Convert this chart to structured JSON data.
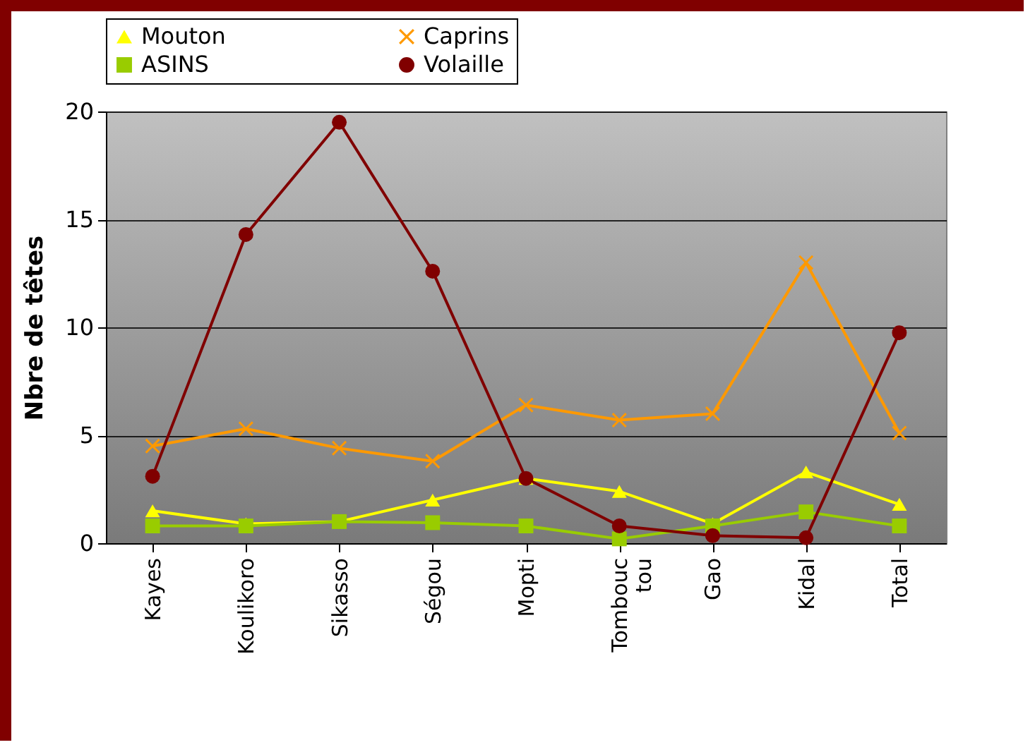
{
  "chart_data": {
    "type": "line",
    "ylabel": "Nbre de têtes",
    "categories": [
      "Kayes",
      "Koulikoro",
      "Sikasso",
      "Ségou",
      "Mopti",
      "Tombouc tou",
      "Gao",
      "Kidal",
      "Total"
    ],
    "series": [
      {
        "name": "Mouton",
        "color": "#ffff00",
        "marker": "triangle",
        "values": [
          1.5,
          0.9,
          1.0,
          2.0,
          3.0,
          2.4,
          0.9,
          3.3,
          1.8
        ]
      },
      {
        "name": "Caprins",
        "color": "#ff9900",
        "marker": "cross",
        "values": [
          4.5,
          5.3,
          4.4,
          3.8,
          6.4,
          5.7,
          6.0,
          13.0,
          5.1
        ]
      },
      {
        "name": "ASINS",
        "color": "#99cc00",
        "marker": "square",
        "values": [
          0.8,
          0.8,
          1.0,
          0.95,
          0.8,
          0.2,
          0.8,
          1.45,
          0.8
        ]
      },
      {
        "name": "Volaille",
        "color": "#800000",
        "marker": "circle",
        "values": [
          3.1,
          14.3,
          19.5,
          12.6,
          3.0,
          0.8,
          0.35,
          0.25,
          9.75
        ]
      }
    ],
    "ylim": [
      0,
      20
    ],
    "yticks": [
      0,
      5,
      10,
      15,
      20
    ],
    "grid": "y",
    "legend": "top"
  }
}
